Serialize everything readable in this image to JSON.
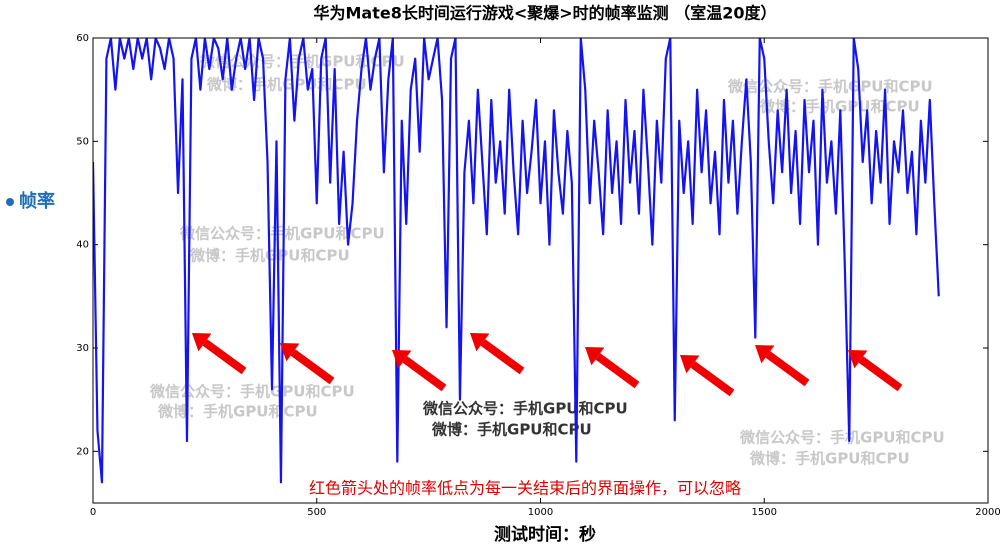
{
  "chart_data": {
    "type": "line",
    "title": "华为Mate8长时间运行游戏<聚爆>时的帧率监测 （室温20度）",
    "x_label": "测试时间：秒",
    "annotation": "红色箭头处的帧率低点为每一关结束后的界面操作，可以忽略",
    "watermarks": [
      [
        "微信公众号：手机GPU和CPU",
        "微博：手机GPU和CPU"
      ],
      [
        "微信公众号：手机GPU和CPU",
        "微博：手机GPU和CPU"
      ],
      [
        "微信公众号：手机GPU和CPU",
        "微博：手机GPU和CPU"
      ],
      [
        "微信公众号：手机GPU和CPU",
        "微博：手机GPU和CPU"
      ],
      [
        "微信公众号：手机GPU和CPU",
        "微博：手机GPU和CPU"
      ],
      [
        "微信公众号：手机GPU和CPU",
        "微博：手机GPU和CPU"
      ]
    ],
    "xlim": [
      0,
      2000
    ],
    "ylim": [
      15,
      60
    ],
    "xticks": [
      0,
      500,
      1000,
      1500,
      2000
    ],
    "yticks": [
      20,
      30,
      40,
      50,
      60
    ],
    "grid": false,
    "x": [
      0,
      10,
      20,
      30,
      40,
      50,
      60,
      70,
      80,
      90,
      100,
      110,
      120,
      130,
      140,
      150,
      160,
      170,
      180,
      190,
      200,
      210,
      220,
      230,
      240,
      250,
      260,
      270,
      280,
      290,
      300,
      310,
      320,
      330,
      340,
      350,
      360,
      370,
      380,
      390,
      400,
      410,
      420,
      430,
      440,
      450,
      460,
      470,
      480,
      490,
      500,
      510,
      520,
      530,
      540,
      550,
      560,
      570,
      580,
      590,
      600,
      610,
      620,
      630,
      640,
      650,
      660,
      670,
      680,
      690,
      700,
      710,
      720,
      730,
      740,
      750,
      760,
      770,
      780,
      790,
      800,
      810,
      820,
      830,
      840,
      850,
      860,
      870,
      880,
      890,
      900,
      910,
      920,
      930,
      940,
      950,
      960,
      970,
      980,
      990,
      1000,
      1010,
      1020,
      1030,
      1040,
      1050,
      1060,
      1070,
      1080,
      1090,
      1100,
      1110,
      1120,
      1130,
      1140,
      1150,
      1160,
      1170,
      1180,
      1190,
      1200,
      1210,
      1220,
      1230,
      1240,
      1250,
      1260,
      1270,
      1280,
      1290,
      1300,
      1310,
      1320,
      1330,
      1340,
      1350,
      1360,
      1370,
      1380,
      1390,
      1400,
      1410,
      1420,
      1430,
      1440,
      1450,
      1460,
      1470,
      1480,
      1490,
      1500,
      1510,
      1520,
      1530,
      1540,
      1550,
      1560,
      1570,
      1580,
      1590,
      1600,
      1610,
      1620,
      1630,
      1640,
      1650,
      1660,
      1670,
      1680,
      1690,
      1700,
      1710,
      1720,
      1730,
      1740,
      1750,
      1760,
      1770,
      1780,
      1790,
      1800,
      1810,
      1820,
      1830,
      1840,
      1850,
      1860,
      1870,
      1880,
      1890
    ],
    "series": [
      {
        "name": "帧率",
        "color": "#1414f0",
        "values": [
          48,
          22,
          17,
          58,
          60,
          55,
          60,
          58,
          60,
          57,
          60,
          58,
          60,
          56,
          60,
          59,
          57,
          60,
          58,
          45,
          56,
          21,
          58,
          60,
          55,
          60,
          57,
          60,
          59,
          56,
          60,
          55,
          58,
          60,
          57,
          60,
          54,
          60,
          58,
          48,
          26,
          50,
          17,
          56,
          60,
          52,
          58,
          60,
          55,
          57,
          44,
          58,
          60,
          46,
          57,
          42,
          49,
          40,
          44,
          52,
          57,
          60,
          55,
          58,
          60,
          47,
          56,
          60,
          19,
          52,
          42,
          55,
          58,
          49,
          60,
          56,
          58,
          60,
          54,
          32,
          58,
          60,
          25,
          47,
          52,
          44,
          55,
          48,
          41,
          54,
          46,
          50,
          43,
          55,
          47,
          41,
          52,
          45,
          49,
          54,
          44,
          50,
          40,
          53,
          47,
          43,
          51,
          46,
          19,
          60,
          55,
          44,
          52,
          47,
          41,
          53,
          45,
          50,
          42,
          54,
          46,
          51,
          43,
          55,
          48,
          40,
          52,
          46,
          58,
          60,
          23,
          52,
          45,
          50,
          42,
          55,
          47,
          53,
          44,
          49,
          41,
          54,
          46,
          52,
          43,
          50,
          56,
          48,
          31,
          60,
          58,
          50,
          44,
          53,
          47,
          55,
          45,
          51,
          42,
          54,
          47,
          52,
          40,
          55,
          46,
          50,
          43,
          53,
          38,
          21,
          60,
          57,
          48,
          53,
          44,
          51,
          46,
          55,
          42,
          50,
          47,
          53,
          45,
          49,
          41,
          52,
          46,
          54,
          44,
          35
        ]
      }
    ]
  }
}
